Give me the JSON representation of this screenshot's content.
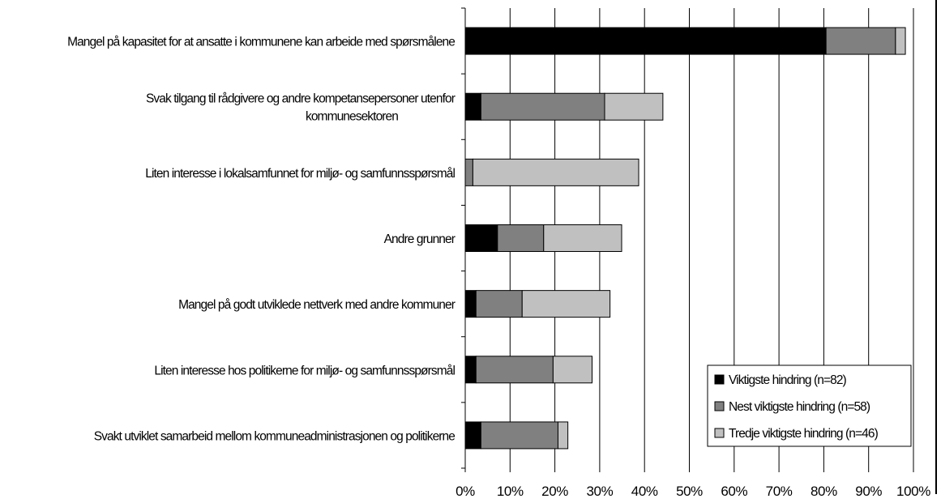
{
  "chart_data": {
    "type": "bar",
    "orientation": "horizontal",
    "stacked": true,
    "categories": [
      [
        "Mangel på kapasitet for at ansatte i kommunene kan arbeide med spørsmålene"
      ],
      [
        "Svak tilgang til rådgivere og andre kompetansepersoner utenfor",
        "kommunesektoren"
      ],
      [
        "Liten interesse i lokalsamfunnet for miljø- og samfunnsspørsmål"
      ],
      [
        "Andre grunner"
      ],
      [
        "Mangel på godt utviklede nettverk med andre kommuner"
      ],
      [
        "Liten interesse hos politikerne for miljø- og samfunnsspørsmål"
      ],
      [
        "Svakt utviklet samarbeid mellom kommuneadministrasjonen og politikerne"
      ]
    ],
    "series": [
      {
        "name": "Viktigste hindring (n=82)",
        "color": "#000000",
        "values": [
          80.5,
          3.5,
          0,
          7.2,
          2.4,
          2.4,
          3.5
        ]
      },
      {
        "name": "Nest viktigste hindring (n=58)",
        "color": "#808080",
        "values": [
          15.5,
          27.6,
          1.7,
          10.3,
          10.3,
          17.2,
          17.2
        ]
      },
      {
        "name": "Tredje viktigste hindring (n=46)",
        "color": "#c0c0c0",
        "values": [
          2.2,
          13.0,
          37.0,
          17.4,
          19.6,
          8.7,
          2.2
        ]
      }
    ],
    "x_ticks": [
      "0%",
      "10%",
      "20%",
      "30%",
      "40%",
      "50%",
      "60%",
      "70%",
      "80%",
      "90%",
      "100%"
    ],
    "xlim": [
      0,
      100
    ],
    "grid": "vertical",
    "legend_position": "bottom-right"
  }
}
